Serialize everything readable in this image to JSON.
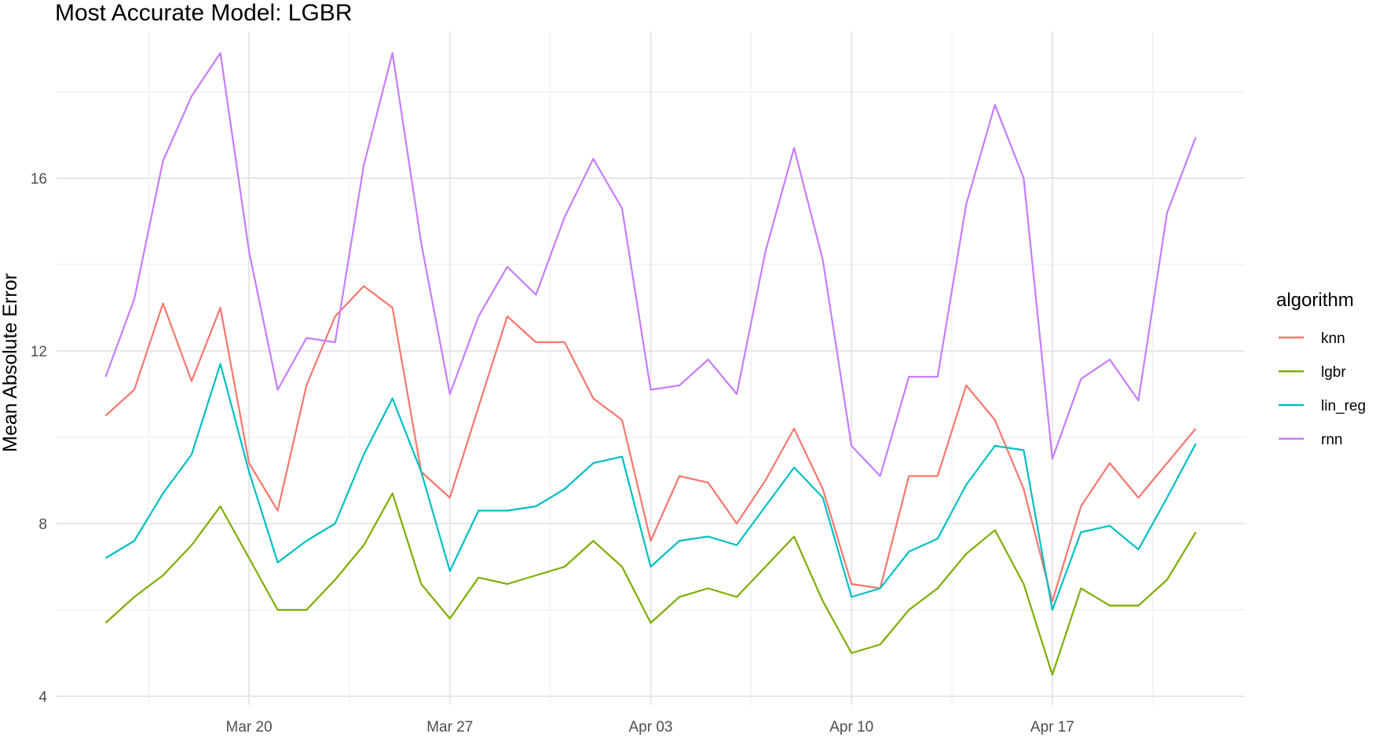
{
  "chart_data": {
    "type": "line",
    "title": "Most Accurate Model: LGBR",
    "xlabel": "",
    "ylabel": "Mean Absolute Error",
    "x": [
      "2022-03-15",
      "2022-03-16",
      "2022-03-17",
      "2022-03-18",
      "2022-03-19",
      "2022-03-20",
      "2022-03-21",
      "2022-03-22",
      "2022-03-23",
      "2022-03-24",
      "2022-03-25",
      "2022-03-26",
      "2022-03-27",
      "2022-03-28",
      "2022-03-29",
      "2022-03-30",
      "2022-03-31",
      "2022-04-01",
      "2022-04-02",
      "2022-04-03",
      "2022-04-04",
      "2022-04-05",
      "2022-04-06",
      "2022-04-07",
      "2022-04-08",
      "2022-04-09",
      "2022-04-10",
      "2022-04-11",
      "2022-04-12",
      "2022-04-13",
      "2022-04-14",
      "2022-04-15",
      "2022-04-16",
      "2022-04-17",
      "2022-04-18",
      "2022-04-19",
      "2022-04-20",
      "2022-04-21",
      "2022-04-22"
    ],
    "x_ticks": [
      "Mar 20",
      "Mar 27",
      "Apr 03",
      "Apr 10",
      "Apr 17"
    ],
    "x_tick_dates": [
      "2022-03-20",
      "2022-03-27",
      "2022-04-03",
      "2022-04-10",
      "2022-04-17"
    ],
    "y_ticks": [
      4,
      8,
      12,
      16
    ],
    "ylim": [
      3.8,
      19.4
    ],
    "grid": true,
    "legend_title": "algorithm",
    "legend_position": "right",
    "series": [
      {
        "name": "knn",
        "color": "#F8766D",
        "values": [
          10.5,
          11.1,
          13.1,
          11.3,
          13.0,
          9.4,
          8.3,
          11.2,
          12.8,
          13.5,
          13.0,
          9.2,
          8.6,
          10.7,
          12.8,
          12.2,
          12.2,
          10.9,
          10.4,
          7.6,
          9.1,
          8.95,
          8.0,
          9.0,
          10.2,
          8.8,
          6.6,
          6.5,
          9.1,
          9.1,
          11.2,
          10.4,
          8.8,
          6.2,
          8.4,
          9.4,
          8.6,
          9.4,
          10.2
        ]
      },
      {
        "name": "lgbr",
        "color": "#7CAE00",
        "values": [
          5.7,
          6.3,
          6.8,
          7.5,
          8.4,
          7.2,
          6.0,
          6.0,
          6.7,
          7.5,
          8.7,
          6.6,
          5.8,
          6.75,
          6.6,
          6.8,
          7.0,
          7.6,
          7.0,
          5.7,
          6.3,
          6.5,
          6.3,
          7.0,
          7.7,
          6.2,
          5.0,
          5.2,
          6.0,
          6.5,
          7.3,
          7.85,
          6.6,
          4.5,
          6.5,
          6.1,
          6.1,
          6.7,
          7.8
        ]
      },
      {
        "name": "lin_reg",
        "color": "#00BFC4",
        "values": [
          7.2,
          7.6,
          8.7,
          9.6,
          11.7,
          9.2,
          7.1,
          7.6,
          8.0,
          9.6,
          10.9,
          9.2,
          6.9,
          8.3,
          8.3,
          8.4,
          8.8,
          9.4,
          9.55,
          7.0,
          7.6,
          7.7,
          7.5,
          8.4,
          9.3,
          8.6,
          6.3,
          6.5,
          7.35,
          7.65,
          8.9,
          9.8,
          9.7,
          6.0,
          7.8,
          7.95,
          7.4,
          8.6,
          9.85
        ]
      },
      {
        "name": "rnn",
        "color": "#C77CFF",
        "values": [
          11.4,
          13.2,
          16.4,
          17.9,
          18.9,
          14.3,
          11.1,
          12.3,
          12.2,
          16.3,
          18.9,
          14.5,
          11.0,
          12.8,
          13.95,
          13.3,
          15.1,
          16.45,
          15.3,
          11.1,
          11.2,
          11.8,
          11.0,
          14.3,
          16.7,
          14.1,
          9.8,
          9.1,
          11.4,
          11.4,
          15.4,
          17.7,
          16.0,
          9.5,
          11.35,
          11.8,
          10.85,
          15.2,
          16.95
        ]
      }
    ]
  }
}
